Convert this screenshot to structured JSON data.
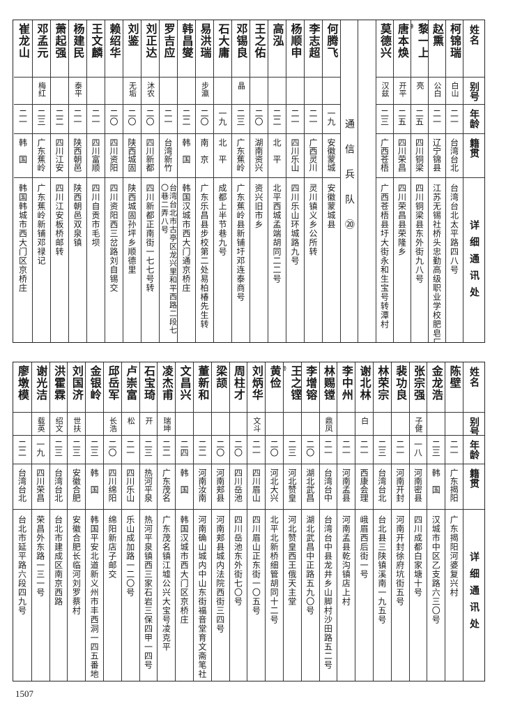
{
  "headers": {
    "name": "姓名",
    "alias": "别号",
    "age": "年龄",
    "origin": "籍贯",
    "address": "详细通讯处"
  },
  "top_table": {
    "rows_before_section": [
      {
        "name": "柯锦瑞",
        "alias": "白山",
        "age": "二一",
        "origin": "台湾台北",
        "address": "台湾台北太平路四八号"
      },
      {
        "name": "赵熏",
        "alias": "公白",
        "age": "二一",
        "origin": "辽宁锦县",
        "address": "江苏无锡社桥头忠勤高级职业学校肥皂厂九号"
      },
      {
        "name": "黎一上",
        "note": "⑲",
        "alias": "亮",
        "age": "二五",
        "origin": "四川铜梁",
        "address": "四川铜梁县东外街九八号"
      },
      {
        "name": "唐本焕",
        "alias": "开平",
        "age": "二五",
        "origin": "四川荣昌",
        "address": "四川荣昌县荣隆乡"
      },
      {
        "name": "莫德兴",
        "alias": "汉兹",
        "age": "二三",
        "origin": "广西苍梧",
        "address": "广西苍梧县圩大街永和生宝号转潭村"
      }
    ],
    "section_title": "通信兵队⑳",
    "rows_after_section": [
      {
        "name": "何腾飞",
        "alias": "",
        "age": "一九",
        "origin": "安徽蒙城",
        "address": "安徽蒙城县"
      },
      {
        "name": "李志超",
        "alias": "",
        "age": "二一",
        "origin": "广西灵川",
        "address": "灵川镇义乡公所转"
      },
      {
        "name": "杨顺申",
        "alias": "",
        "age": "二一",
        "origin": "四川乐山",
        "address": "四川乐山环城路九号"
      },
      {
        "name": "高泓",
        "alias": "",
        "age": "二二",
        "origin": "北　平",
        "address": "北平西城孟端胡同二二号"
      },
      {
        "name": "王之佑",
        "alias": "",
        "age": "二〇",
        "origin": "湖南资兴",
        "address": "资兴旧市乡"
      },
      {
        "name": "邓锡良",
        "alias": "晶",
        "age": "二三",
        "origin": "广东蕉岭",
        "address": "广东蕉岭县新铺圩邓连泰商号"
      },
      {
        "name": "石大庸",
        "alias": "",
        "age": "一九",
        "origin": "北　平",
        "address": "成都上半节巷九号"
      },
      {
        "name": "易洪瑞",
        "alias": "步瀛",
        "age": "二〇",
        "origin": "南　京",
        "address": "广东乐昌县步校第二处易柏椿先生转"
      },
      {
        "name": "韩昌燮",
        "alias": "",
        "age": "二二",
        "origin": "韩　国",
        "address": "韩国汉城市西大门通京桥庄"
      },
      {
        "name": "罗吉应",
        "alias": "",
        "age": "二一",
        "origin": "台湾新竹",
        "address": "台湾台北市古亭区龙兴里和平西路二段七〇巷二弄八号"
      },
      {
        "name": "刘正达",
        "alias": "沐农",
        "age": "二〇",
        "origin": "四川新都",
        "address": "四川新都正南街一七七号转"
      },
      {
        "name": "刘鉴",
        "alias": "无垢",
        "age": "二〇",
        "origin": "陕西城固",
        "address": "陕西城固孙坪乡顺德里"
      },
      {
        "name": "赖绍华",
        "alias": "",
        "age": "二〇",
        "origin": "四川资阳",
        "address": "四川资阳西三岔路刘自锡交"
      },
      {
        "name": "王文麟",
        "alias": "",
        "age": "二一",
        "origin": "四川富顺",
        "address": "四川自贡市毛坝"
      },
      {
        "name": "杨建民",
        "alias": "泰平",
        "age": "二一",
        "origin": "陕西朝邑",
        "address": "陕西朝邑双泉镇"
      },
      {
        "name": "萧起强",
        "alias": "",
        "age": "二二",
        "origin": "四川江安",
        "address": "四川江安板桥邮转"
      },
      {
        "name": "邓孟元",
        "alias": "梅红",
        "age": "二三",
        "origin": "广东蕉岭",
        "address": "广东蕉岭新铺邓禄记"
      },
      {
        "name": "崔龙山",
        "alias": "",
        "age": "二一",
        "origin": "韩　国",
        "address": "韩国韩城市西大门区京桥庄"
      }
    ]
  },
  "bottom_table": {
    "rows": [
      {
        "name": "陈壁",
        "alias": "",
        "age": "二一",
        "origin": "广东揭阳",
        "address": "广东揭阳河婆复兴村"
      },
      {
        "name": "金龙浩",
        "alias": "",
        "age": "二三",
        "origin": "韩　国",
        "address": "汉城市中区乙支路六三〇号"
      },
      {
        "name": "张宗强",
        "alias": "子健",
        "age": "一八",
        "origin": "河南密县",
        "address": "四川成都白家塘十号"
      },
      {
        "name": "裴功良",
        "alias": "",
        "age": "二一",
        "origin": "河南开封",
        "address": "河南开封徐府坑街五号"
      },
      {
        "name": "林荣宗",
        "alias": "",
        "age": "二三",
        "origin": "台湾台北",
        "address": "台北县三陕镇溪南一九五号"
      },
      {
        "name": "谢北林",
        "alias": "白",
        "age": "二一",
        "origin": "西康会理",
        "address": "峨眉西后街一号"
      },
      {
        "name": "李中州",
        "alias": "",
        "age": "二一",
        "origin": "河南孟县",
        "address": "河南孟县乾沟镇店上村"
      },
      {
        "name": "林赐镗",
        "alias": "鼎凤",
        "age": "二一",
        "origin": "台湾台中",
        "address": "台湾台中县龙井乡山脚村沙田路五二号"
      },
      {
        "name": "李增镕",
        "alias": "",
        "age": "二〇",
        "origin": "湖北武昌",
        "address": "湖北武昌中正路五九〇号"
      },
      {
        "name": "王之铿",
        "note": "㉑",
        "alias": "",
        "age": "二三",
        "origin": "河北赞皇",
        "address": "河北赞皇西王俄天主堂"
      },
      {
        "name": "黄俭",
        "alias": "",
        "age": "二〇",
        "origin": "河北大兴",
        "address": "北平北新桥细管胡同十二号"
      },
      {
        "name": "刘炳华",
        "alias": "文斗",
        "age": "二一",
        "origin": "四川眉山",
        "address": "四川眉山正东街一〇五号"
      },
      {
        "name": "周柱才",
        "alias": "",
        "age": "二〇",
        "origin": "四川岳池",
        "address": "四川岳池东外街七〇号"
      },
      {
        "name": "梁颉",
        "alias": "",
        "age": "二〇",
        "origin": "河南郏县",
        "address": "河南郏县城内法院西街三四号"
      },
      {
        "name": "董新和",
        "alias": "",
        "age": "二二",
        "origin": "河南汝南",
        "address": "河南确山城内中山东街福音堂育文斋笔社"
      },
      {
        "name": "文昌兴",
        "alias": "",
        "age": "二四",
        "origin": "韩　国",
        "address": "韩国汉城市西大门区京桥庄"
      },
      {
        "name": "凌杰甫",
        "alias": "瑞坤",
        "age": "二二",
        "origin": "广东茂名",
        "address": "广东茂名镇江墟公兴大宝号凌克平"
      },
      {
        "name": "石宝琦",
        "alias": "开",
        "age": "二三",
        "origin": "热河平泉",
        "address": "热河平泉镇西三家石岩三保四甲一四号"
      },
      {
        "name": "卢崇富",
        "alias": "松",
        "age": "二一",
        "origin": "四川乐山",
        "address": "乐山成加路一二〇号"
      },
      {
        "name": "邱岳军",
        "alias": "长浩",
        "age": "二〇",
        "origin": "四川绵阳",
        "address": "绵阳新店子邮交"
      },
      {
        "name": "金银岭",
        "alias": "",
        "age": "二三",
        "origin": "韩　国",
        "address": "韩国平安北道新义州市丰西洞一四五番地"
      },
      {
        "name": "刘国济",
        "alias": "世扶",
        "age": "二三",
        "origin": "安徽合肥",
        "address": "安徽合肥长临河刘罗蔡村"
      },
      {
        "name": "洪霍霖",
        "alias": "绍文",
        "age": "二三",
        "origin": "台湾台北",
        "address": "台北市建成区南京西路"
      },
      {
        "name": "谢光洁",
        "alias": "载英",
        "age": "一九",
        "origin": "四川荣昌",
        "address": "荣昌外东路一三一号"
      },
      {
        "name": "廖墩模",
        "alias": "",
        "age": "二二",
        "origin": "台湾台北",
        "address": "台北市延平路六段四九号"
      }
    ]
  },
  "page_number": "1507"
}
